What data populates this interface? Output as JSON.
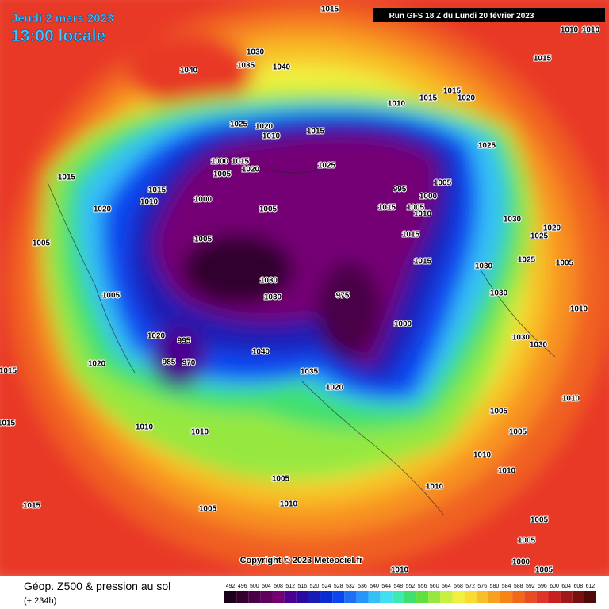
{
  "header": {
    "date": "Jeudi 2 mars 2023",
    "time": "13:00 locale",
    "run": "Run GFS 18 Z du Lundi 20 février 2023"
  },
  "copyright": "Copyright © 2023 Meteociel.fr",
  "legend": {
    "title": "Géop. Z500 & pression au sol",
    "lead": "(+ 234h)",
    "scale": [
      492,
      496,
      500,
      504,
      508,
      512,
      516,
      520,
      524,
      528,
      532,
      536,
      540,
      544,
      548,
      552,
      556,
      560,
      564,
      568,
      572,
      576,
      580,
      584,
      588,
      592,
      596,
      600,
      604,
      608,
      612
    ],
    "colors": [
      "#1a001a",
      "#33002e",
      "#4a0046",
      "#5f005c",
      "#740074",
      "#4a0090",
      "#2c0aa0",
      "#1a1ab4",
      "#0a2ad2",
      "#0a46f0",
      "#1e6ef6",
      "#2896f8",
      "#34c0f8",
      "#40e0f0",
      "#40e8b4",
      "#40e070",
      "#60e040",
      "#96e840",
      "#c8f040",
      "#f0f040",
      "#f8dc30",
      "#f8c028",
      "#f8a020",
      "#f88418",
      "#f06818",
      "#e84c20",
      "#e03428",
      "#c82020",
      "#a01818",
      "#781010",
      "#500808"
    ]
  },
  "isobar_labels": [
    1015,
    1010,
    1010,
    1015,
    1030,
    1035,
    1040,
    1040,
    1010,
    1015,
    1015,
    1020,
    1025,
    1020,
    1010,
    1015,
    1025,
    1000,
    1015,
    1005,
    1020,
    1025,
    1005,
    995,
    1000,
    1015,
    1010,
    1000,
    1015,
    1020,
    1005,
    1015,
    1005,
    1010,
    1030,
    1020,
    1025,
    1015,
    1005,
    1005,
    1030,
    1025,
    1005,
    1015,
    1030,
    1030,
    975,
    1005,
    1030,
    1010,
    1000,
    1020,
    1030,
    1030,
    1020,
    1015,
    985,
    970,
    995,
    1040,
    1035,
    1020,
    1010,
    1005,
    1010,
    1010,
    1005,
    1015,
    1010,
    1010,
    1005,
    1010,
    1010,
    1005,
    1015,
    1005,
    1005,
    1000,
    1010,
    1005
  ]
}
